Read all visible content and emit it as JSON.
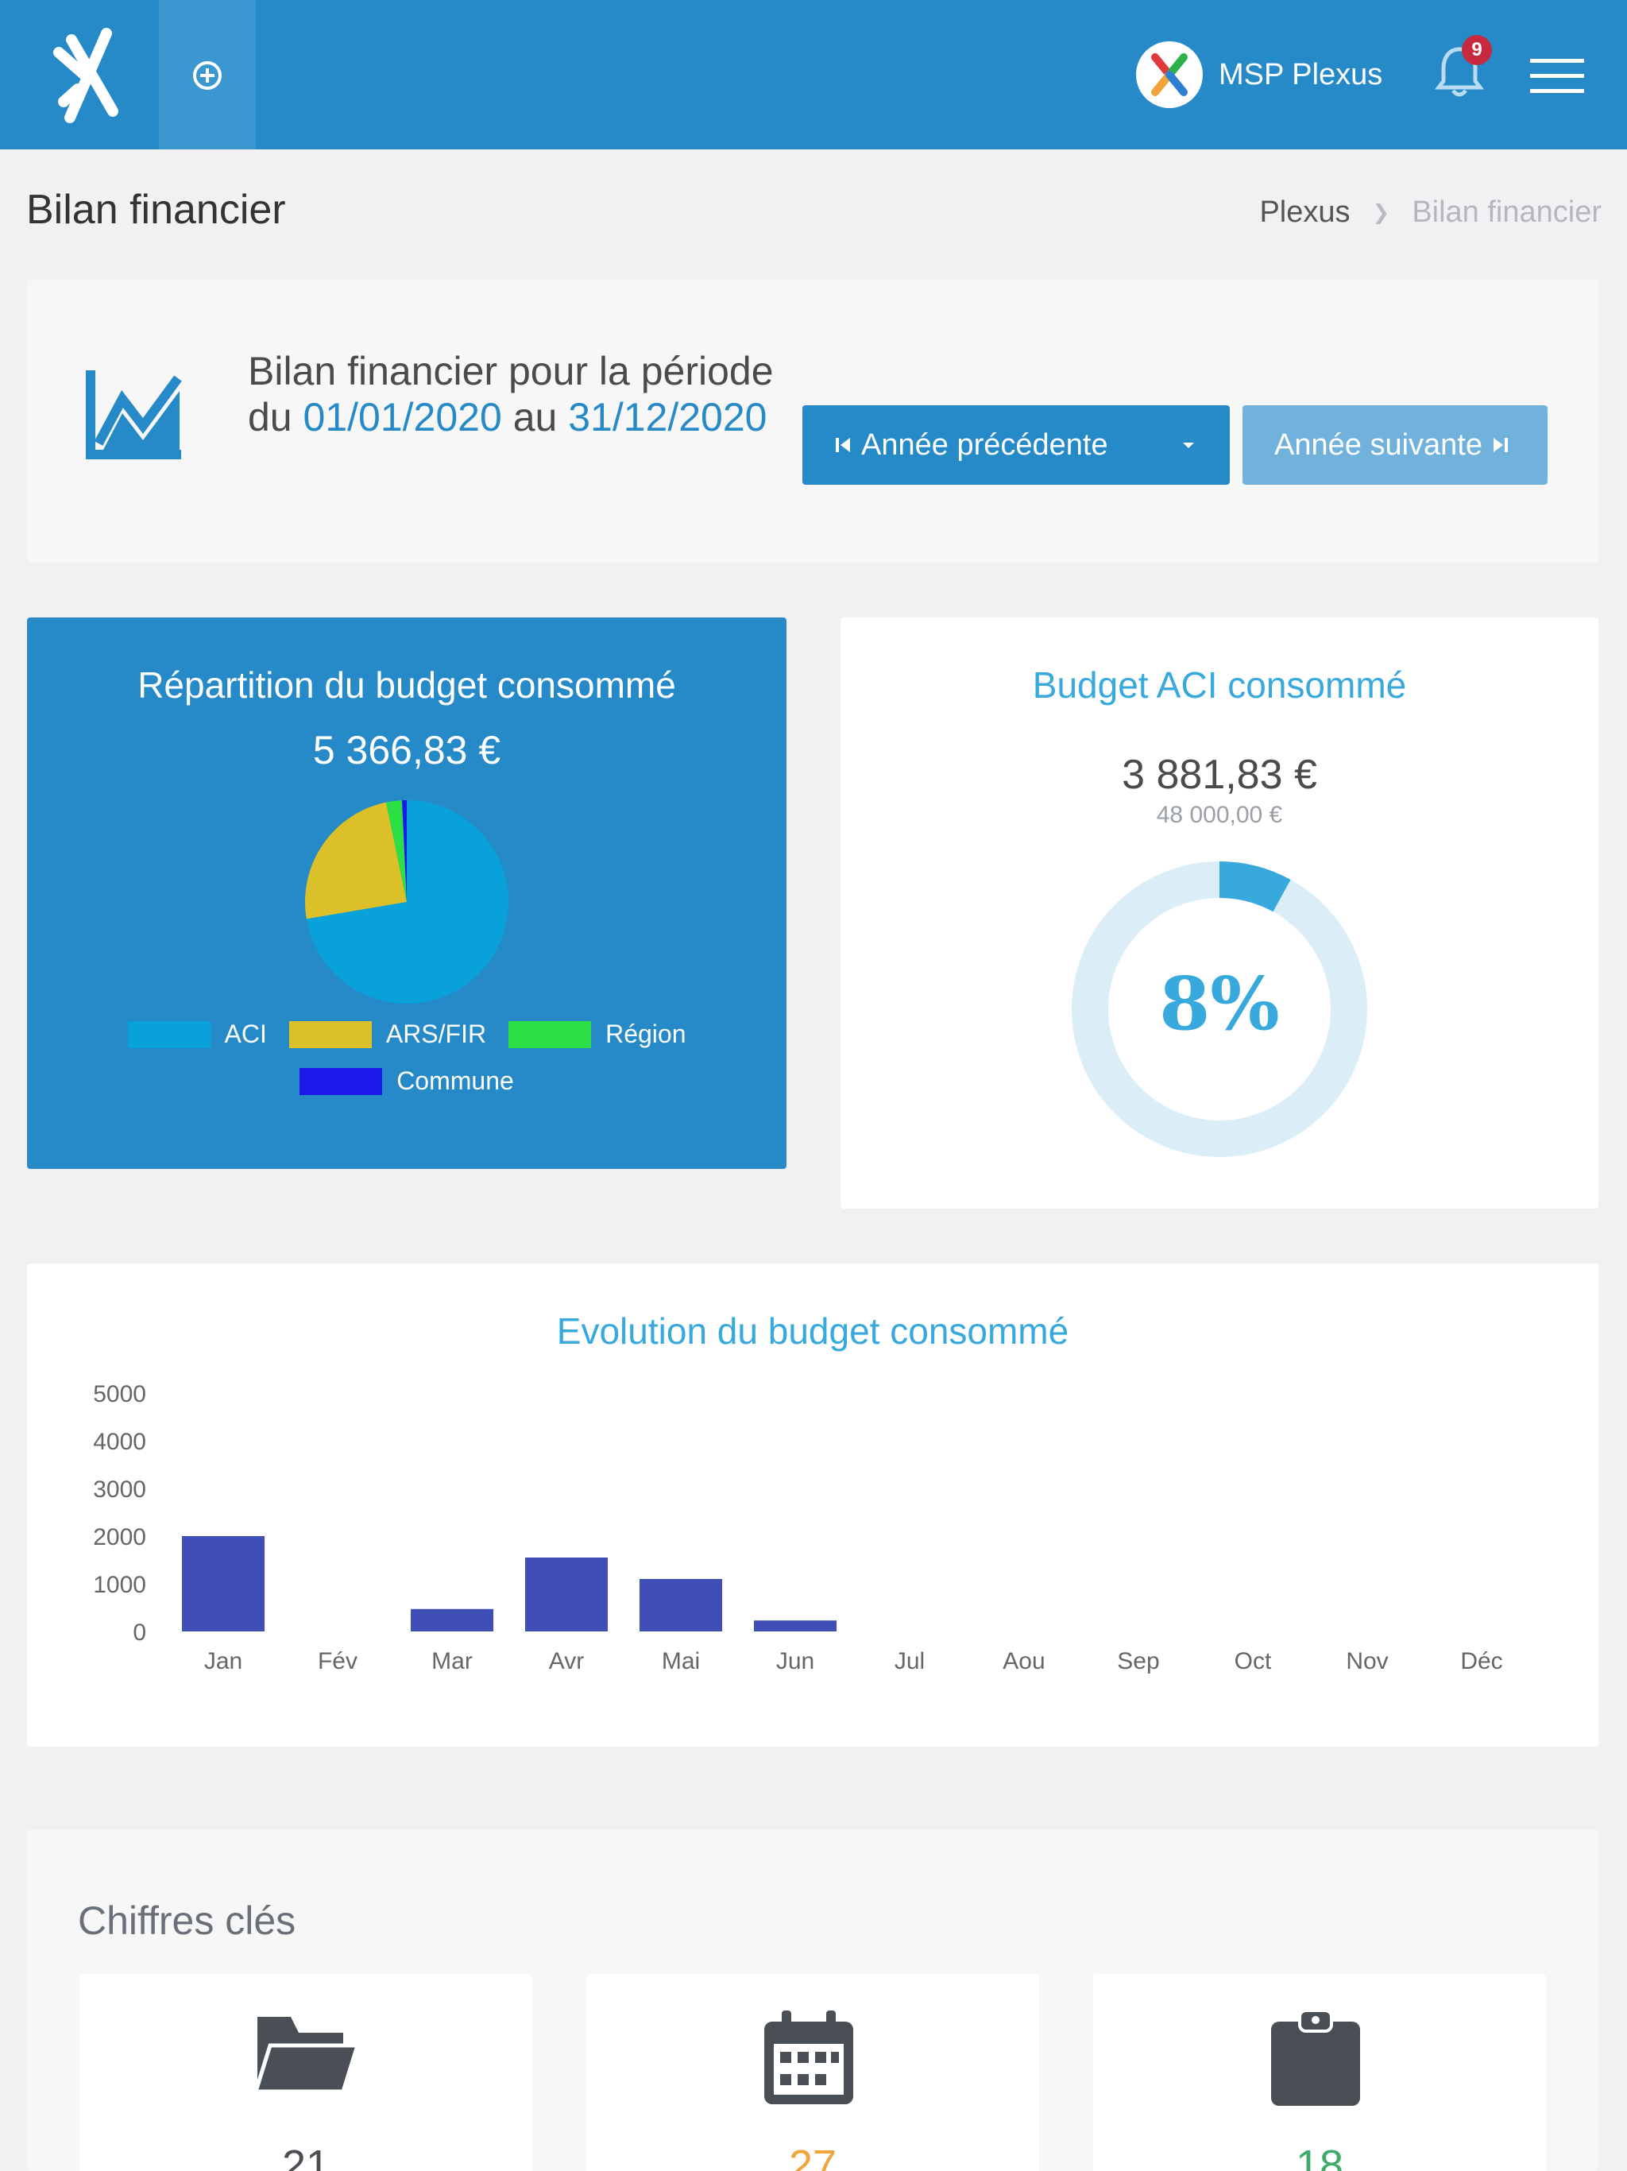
{
  "header": {
    "org_name": "MSP Plexus",
    "notification_count": "9",
    "icons": [
      "logo-icon",
      "add-circle-icon",
      "org-logo-icon",
      "bell-icon",
      "menu-icon"
    ]
  },
  "page": {
    "title": "Bilan financier",
    "breadcrumb": [
      "Plexus",
      "Bilan financier"
    ]
  },
  "period": {
    "text_prefix": "Bilan financier pour la période du",
    "start_date": "01/01/2020",
    "connector": "au",
    "end_date": "31/12/2020",
    "prev_button": "Année précédente",
    "next_button": "Année suivante"
  },
  "distribution": {
    "title": "Répartition du budget consommé",
    "total": "5 366,83 €"
  },
  "aci": {
    "title": "Budget ACI consommé",
    "consumed": "3 881,83 €",
    "budget": "48 000,00 €",
    "percent_label": "8%",
    "percent_value": 8,
    "accent_color": "#37a9dc"
  },
  "evolution": {
    "title": "Evolution du budget consommé"
  },
  "key_figures": {
    "title": "Chiffres clés",
    "items": [
      {
        "icon": "folder-open-icon",
        "value": "21",
        "color": "#4a4f55"
      },
      {
        "icon": "calendar-icon",
        "value": "27",
        "color": "#f0a43a"
      },
      {
        "icon": "clipboard-icon",
        "value": "18",
        "color": "#3eab6a"
      }
    ]
  },
  "chart_data": [
    {
      "type": "pie",
      "categories": [
        "ACI",
        "ARS/FIR",
        "Région",
        "Commune"
      ],
      "values": [
        3881.83,
        1310,
        135,
        40
      ],
      "colors": [
        "#08a1da",
        "#dcc02a",
        "#2bdf45",
        "#1c17ea"
      ],
      "legend": "bottom"
    },
    {
      "type": "bar",
      "title": "Evolution du budget consommé",
      "categories": [
        "Jan",
        "Fév",
        "Mar",
        "Avr",
        "Mai",
        "Jun",
        "Jul",
        "Aou",
        "Sep",
        "Oct",
        "Nov",
        "Déc"
      ],
      "values": [
        2000,
        0,
        470,
        1550,
        1100,
        230,
        0,
        0,
        0,
        0,
        0,
        0
      ],
      "yticks": [
        0,
        1000,
        2000,
        3000,
        4000,
        5000
      ],
      "ylim": [
        0,
        5000
      ],
      "color": "#3f4fb5",
      "grid": false,
      "legend": "none"
    }
  ]
}
